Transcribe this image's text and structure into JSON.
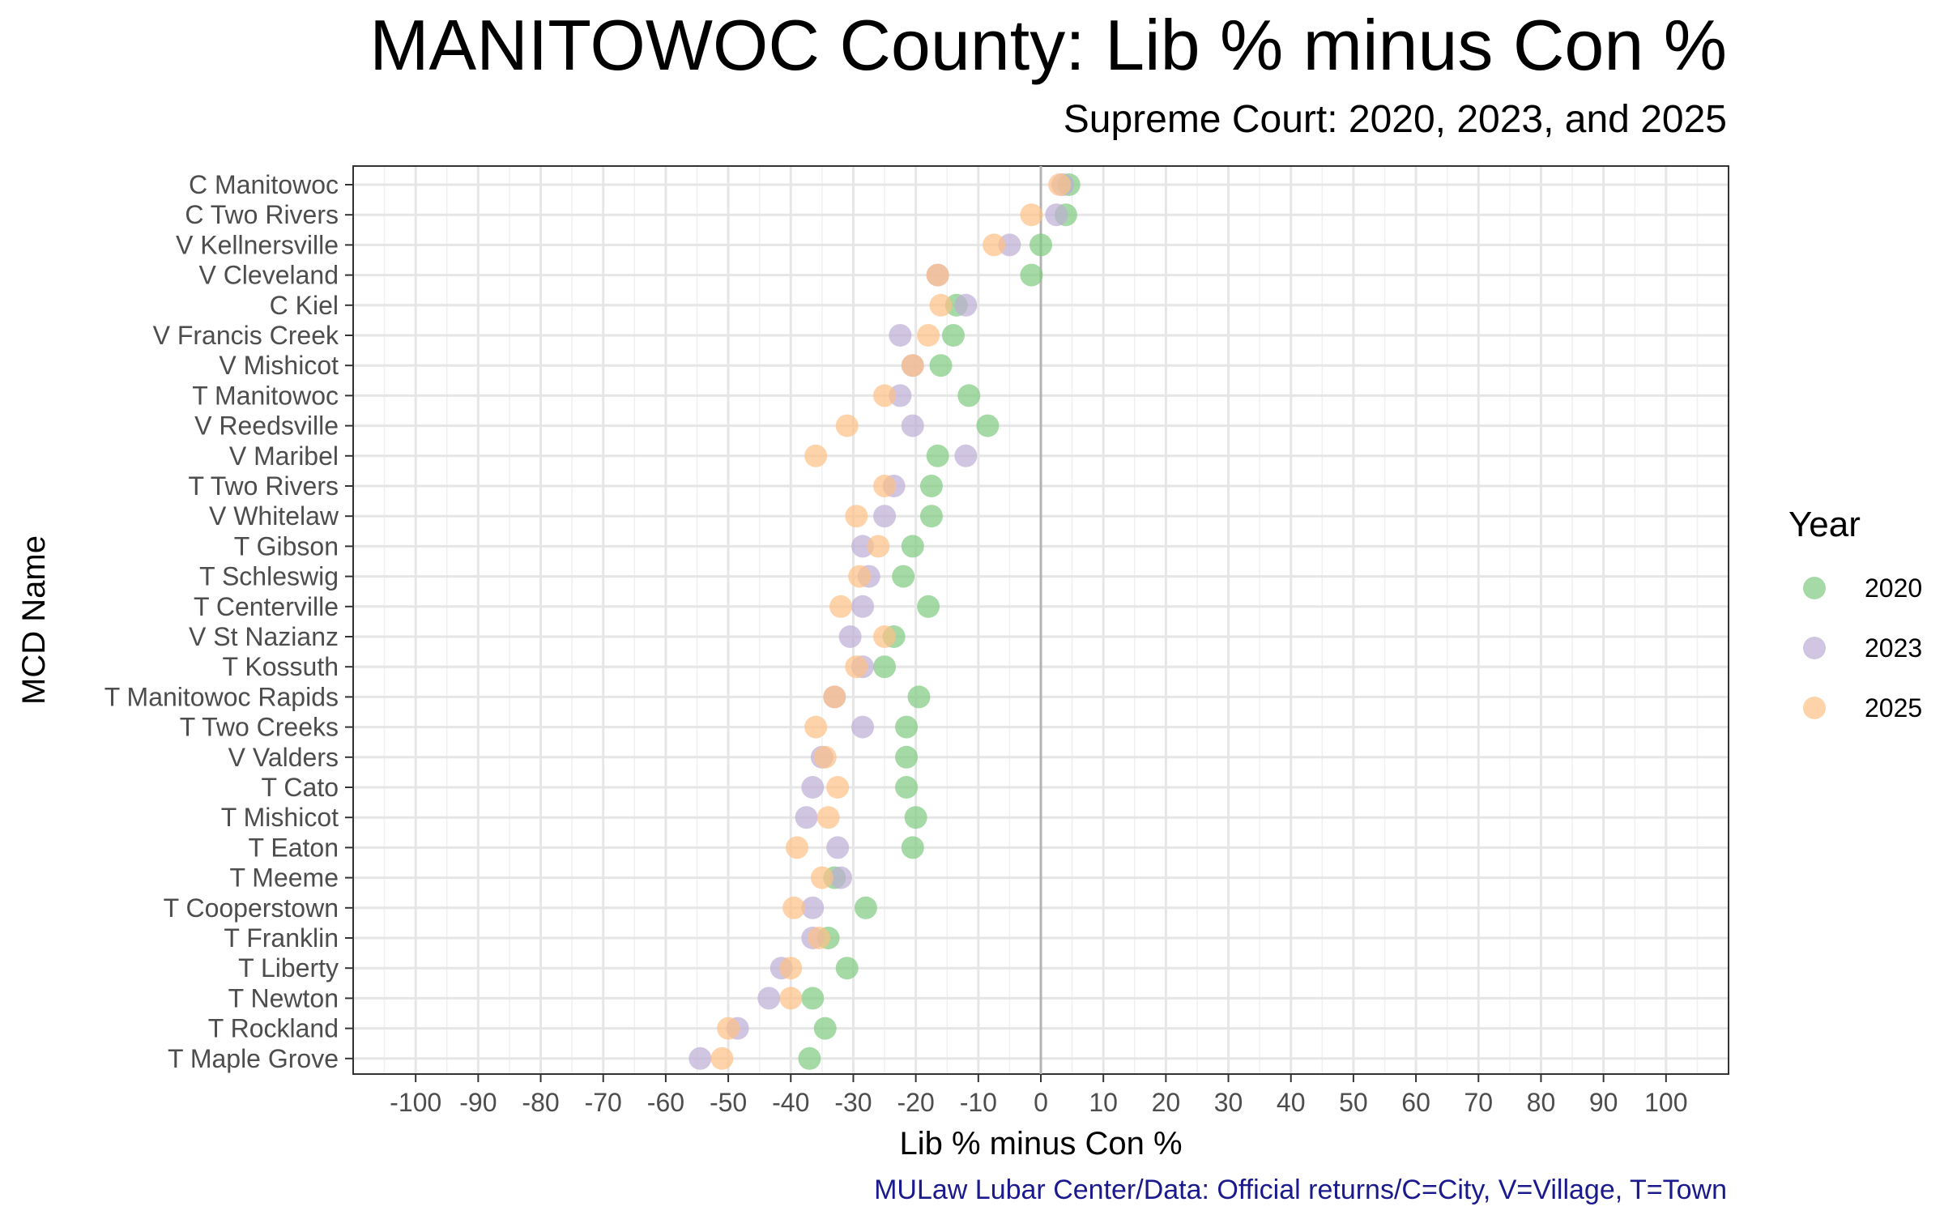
{
  "title": "MANITOWOC County: Lib % minus Con %",
  "subtitle": "Supreme Court: 2020, 2023, and 2025",
  "caption": "MULaw Lubar Center/Data: Official returns/C=City, V=Village, T=Town",
  "chart_data": {
    "type": "scatter",
    "xlabel": "Lib % minus Con %",
    "ylabel": "MCD Name",
    "xlim": [
      -110,
      110
    ],
    "xticks": [
      -100,
      -90,
      -80,
      -70,
      -60,
      -50,
      -40,
      -30,
      -20,
      -10,
      0,
      10,
      20,
      30,
      40,
      50,
      60,
      70,
      80,
      90,
      100
    ],
    "grid": true,
    "legend_title": "Year",
    "legend_position": "right",
    "categories": [
      "C Manitowoc",
      "C Two Rivers",
      "V Kellnersville",
      "V Cleveland",
      "C Kiel",
      "V Francis Creek",
      "V Mishicot",
      "T Manitowoc",
      "V Reedsville",
      "V Maribel",
      "T Two Rivers",
      "V Whitelaw",
      "T Gibson",
      "T Schleswig",
      "T Centerville",
      "V St Nazianz",
      "T Kossuth",
      "T Manitowoc Rapids",
      "T Two Creeks",
      "V Valders",
      "T Cato",
      "T Mishicot",
      "T Eaton",
      "T Meeme",
      "T Cooperstown",
      "T Franklin",
      "T Liberty",
      "T Newton",
      "T Rockland",
      "T Maple Grove"
    ],
    "series": [
      {
        "name": "2020",
        "color": "#7fc97f",
        "values": [
          4.5,
          4,
          0,
          -1.5,
          -13.5,
          -14,
          -16,
          -11.5,
          -8.5,
          -16.5,
          -17.5,
          -17.5,
          -20.5,
          -22,
          -18,
          -23.5,
          -25,
          -19.5,
          -21.5,
          -21.5,
          -21.5,
          -20,
          -20.5,
          -33,
          -28,
          -34,
          -31,
          -36.5,
          -34.5,
          -37
        ]
      },
      {
        "name": "2023",
        "color": "#beaed4",
        "values": [
          3.5,
          2.5,
          -5,
          -16.5,
          -12,
          -22.5,
          -20.5,
          -22.5,
          -20.5,
          -12,
          -23.5,
          -25,
          -28.5,
          -27.5,
          -28.5,
          -30.5,
          -28.5,
          -33,
          -28.5,
          -35,
          -36.5,
          -37.5,
          -32.5,
          -32,
          -36.5,
          -36.5,
          -41.5,
          -43.5,
          -48.5,
          -54.5
        ]
      },
      {
        "name": "2025",
        "color": "#fdc086",
        "values": [
          3,
          -1.5,
          -7.5,
          -16.5,
          -16,
          -18,
          -20.5,
          -25,
          -31,
          -36,
          -25,
          -29.5,
          -26,
          -29,
          -32,
          -25,
          -29.5,
          -33,
          -36,
          -34.5,
          -32.5,
          -34,
          -39,
          -35,
          -39.5,
          -35.5,
          -40,
          -40,
          -50,
          -51
        ]
      }
    ]
  }
}
